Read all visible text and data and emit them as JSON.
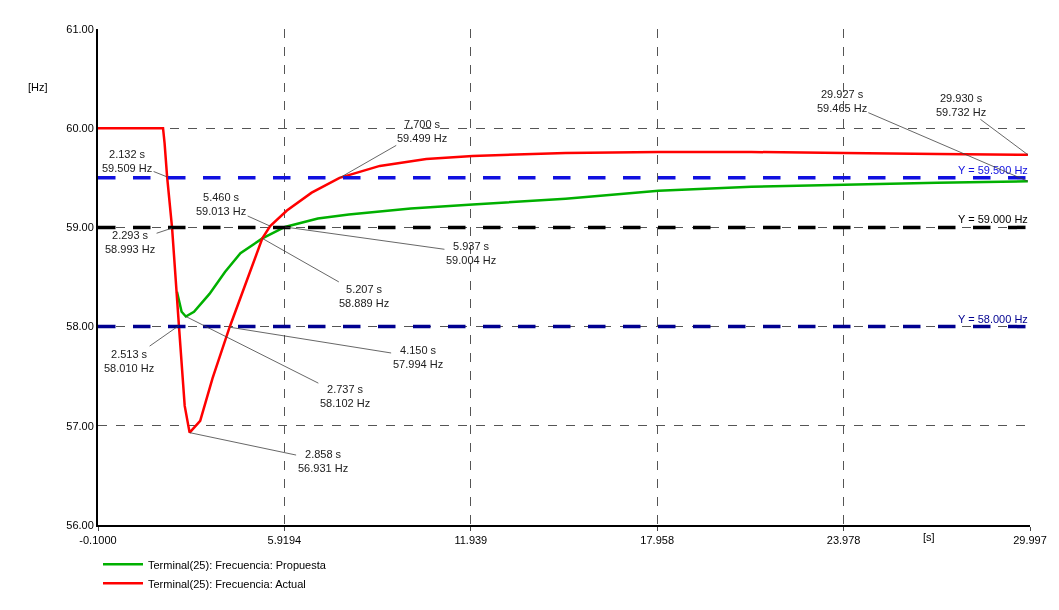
{
  "chart_data": {
    "type": "line",
    "xlabel": "[s]",
    "ylabel": "[Hz]",
    "xlim": [
      -0.1,
      29.997
    ],
    "xticks": [
      {
        "value": -0.1,
        "label": "-0.1000"
      },
      5.9194,
      11.939,
      17.958,
      23.978,
      29.997
    ],
    "ylim": [
      56,
      61
    ],
    "yticks": [
      {
        "value": 56,
        "label": "56.00"
      },
      {
        "value": 57,
        "label": "57.00"
      },
      {
        "value": 58,
        "label": "58.00"
      },
      {
        "value": 59,
        "label": "59.00"
      },
      {
        "value": 60,
        "label": "60.00"
      },
      {
        "value": 61,
        "label": "61.00"
      }
    ],
    "grid": true,
    "legend": "bottom left",
    "marker": "none",
    "line_style": "solid",
    "series": [
      {
        "name": "Terminal(25): Frecuencia: Propuesta",
        "color": "#00b000",
        "x": [
          2.45,
          2.6,
          2.737,
          3.0,
          3.5,
          4.0,
          4.5,
          5.207,
          5.937,
          7.0,
          8.0,
          10.0,
          12.0,
          15.0,
          18.0,
          21.0,
          24.0,
          27.0,
          29.927
        ],
        "values": [
          58.35,
          58.15,
          58.102,
          58.15,
          58.33,
          58.55,
          58.74,
          58.889,
          59.004,
          59.09,
          59.13,
          59.19,
          59.23,
          59.29,
          59.37,
          59.41,
          59.43,
          59.45,
          59.465
        ]
      },
      {
        "name": "Terminal(25): Frecuencia: Actual",
        "color": "#ff0000",
        "x": [
          -0.1,
          2.0,
          2.05,
          2.132,
          2.293,
          2.513,
          2.7,
          2.858,
          3.2,
          3.6,
          4.15,
          4.7,
          5.207,
          5.46,
          6.0,
          6.8,
          7.7,
          9.0,
          10.5,
          12.0,
          15.0,
          18.0,
          21.0,
          24.0,
          27.0,
          29.93
        ],
        "values": [
          60,
          60,
          59.85,
          59.509,
          58.993,
          58.01,
          57.2,
          56.931,
          57.05,
          57.48,
          57.994,
          58.46,
          58.889,
          59.013,
          59.17,
          59.35,
          59.499,
          59.62,
          59.69,
          59.72,
          59.75,
          59.76,
          59.76,
          59.75,
          59.74,
          59.732
        ]
      }
    ],
    "ref_lines": [
      {
        "axis": "y",
        "value": 59.5,
        "label": "Y = 59.500 Hz",
        "color": "#1010e0",
        "line_style": "dashed"
      },
      {
        "axis": "y",
        "value": 59.0,
        "label": "Y = 59.000 Hz",
        "color": "#000000",
        "line_style": "dashed"
      },
      {
        "axis": "y",
        "value": 58.0,
        "label": "Y = 58.000 Hz",
        "color": "#000090",
        "line_style": "dashed"
      }
    ],
    "annotations": [
      {
        "text": "2.132 s\n59.509 Hz",
        "x": 2.132,
        "y": 59.509
      },
      {
        "text": "2.293 s\n58.993 Hz",
        "x": 2.293,
        "y": 58.993
      },
      {
        "text": "2.513 s\n58.010 Hz",
        "x": 2.513,
        "y": 58.01
      },
      {
        "text": "2.858 s\n56.931 Hz",
        "x": 2.858,
        "y": 56.931
      },
      {
        "text": "2.737 s\n58.102 Hz",
        "x": 2.737,
        "y": 58.102
      },
      {
        "text": "4.150 s\n57.994 Hz",
        "x": 4.15,
        "y": 57.994
      },
      {
        "text": "5.207 s\n58.889 Hz",
        "x": 5.207,
        "y": 58.889
      },
      {
        "text": "5.460 s\n59.013 Hz",
        "x": 5.46,
        "y": 59.013
      },
      {
        "text": "5.937 s\n59.004 Hz",
        "x": 5.937,
        "y": 59.004
      },
      {
        "text": "7.700 s\n59.499 Hz",
        "x": 7.7,
        "y": 59.499
      },
      {
        "text": "29.927 s\n59.465 Hz",
        "x": 29.927,
        "y": 59.465
      },
      {
        "text": "29.930 s\n59.732 Hz",
        "x": 29.93,
        "y": 59.732
      }
    ]
  }
}
